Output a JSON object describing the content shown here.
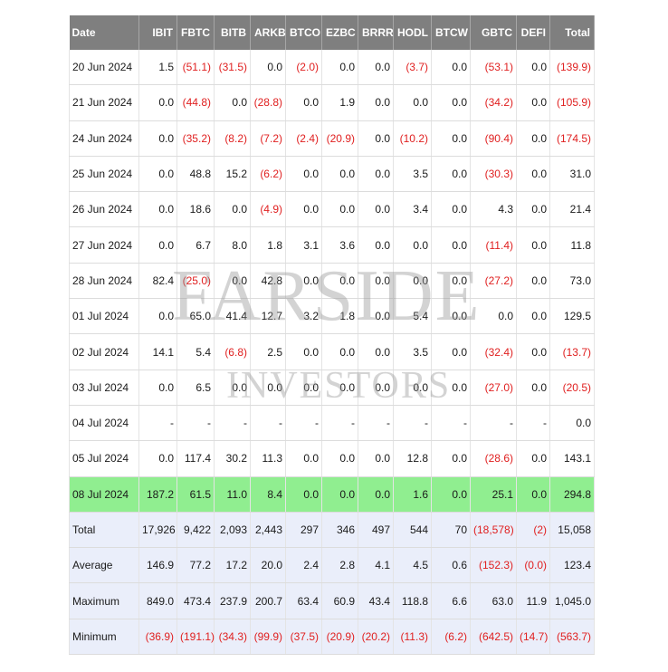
{
  "table": {
    "headers": [
      "Date",
      "IBIT",
      "FBTC",
      "BITB",
      "ARKB",
      "BTCO",
      "EZBC",
      "BRRR",
      "HODL",
      "BTCW",
      "GBTC",
      "DEFI",
      "Total"
    ],
    "rows": [
      [
        "20 Jun 2024",
        "1.5",
        "(51.1)",
        "(31.5)",
        "0.0",
        "(2.0)",
        "0.0",
        "0.0",
        "(3.7)",
        "0.0",
        "(53.1)",
        "0.0",
        "(139.9)"
      ],
      [
        "21 Jun 2024",
        "0.0",
        "(44.8)",
        "0.0",
        "(28.8)",
        "0.0",
        "1.9",
        "0.0",
        "0.0",
        "0.0",
        "(34.2)",
        "0.0",
        "(105.9)"
      ],
      [
        "24 Jun 2024",
        "0.0",
        "(35.2)",
        "(8.2)",
        "(7.2)",
        "(2.4)",
        "(20.9)",
        "0.0",
        "(10.2)",
        "0.0",
        "(90.4)",
        "0.0",
        "(174.5)"
      ],
      [
        "25 Jun 2024",
        "0.0",
        "48.8",
        "15.2",
        "(6.2)",
        "0.0",
        "0.0",
        "0.0",
        "3.5",
        "0.0",
        "(30.3)",
        "0.0",
        "31.0"
      ],
      [
        "26 Jun 2024",
        "0.0",
        "18.6",
        "0.0",
        "(4.9)",
        "0.0",
        "0.0",
        "0.0",
        "3.4",
        "0.0",
        "4.3",
        "0.0",
        "21.4"
      ],
      [
        "27 Jun 2024",
        "0.0",
        "6.7",
        "8.0",
        "1.8",
        "3.1",
        "3.6",
        "0.0",
        "0.0",
        "0.0",
        "(11.4)",
        "0.0",
        "11.8"
      ],
      [
        "28 Jun 2024",
        "82.4",
        "(25.0)",
        "0.0",
        "42.8",
        "0.0",
        "0.0",
        "0.0",
        "0.0",
        "0.0",
        "(27.2)",
        "0.0",
        "73.0"
      ],
      [
        "01 Jul 2024",
        "0.0",
        "65.0",
        "41.4",
        "12.7",
        "3.2",
        "1.8",
        "0.0",
        "5.4",
        "0.0",
        "0.0",
        "0.0",
        "129.5"
      ],
      [
        "02 Jul 2024",
        "14.1",
        "5.4",
        "(6.8)",
        "2.5",
        "0.0",
        "0.0",
        "0.0",
        "3.5",
        "0.0",
        "(32.4)",
        "0.0",
        "(13.7)"
      ],
      [
        "03 Jul 2024",
        "0.0",
        "6.5",
        "0.0",
        "0.0",
        "0.0",
        "0.0",
        "0.0",
        "0.0",
        "0.0",
        "(27.0)",
        "0.0",
        "(20.5)"
      ],
      [
        "04 Jul 2024",
        "-",
        "-",
        "-",
        "-",
        "-",
        "-",
        "-",
        "-",
        "-",
        "-",
        "-",
        "0.0"
      ],
      [
        "05 Jul 2024",
        "0.0",
        "117.4",
        "30.2",
        "11.3",
        "0.0",
        "0.0",
        "0.0",
        "12.8",
        "0.0",
        "(28.6)",
        "0.0",
        "143.1"
      ],
      [
        "08 Jul 2024",
        "187.2",
        "61.5",
        "11.0",
        "8.4",
        "0.0",
        "0.0",
        "0.0",
        "1.6",
        "0.0",
        "25.1",
        "0.0",
        "294.8"
      ]
    ],
    "highlight_row_index": 12,
    "summary_rows": [
      [
        "Total",
        "17,926",
        "9,422",
        "2,093",
        "2,443",
        "297",
        "346",
        "497",
        "544",
        "70",
        "(18,578)",
        "(2)",
        "15,058"
      ],
      [
        "Average",
        "146.9",
        "77.2",
        "17.2",
        "20.0",
        "2.4",
        "2.8",
        "4.1",
        "4.5",
        "0.6",
        "(152.3)",
        "(0.0)",
        "123.4"
      ],
      [
        "Maximum",
        "849.0",
        "473.4",
        "237.9",
        "200.7",
        "63.4",
        "60.9",
        "43.4",
        "118.8",
        "6.6",
        "63.0",
        "11.9",
        "1,045.0"
      ],
      [
        "Minimum",
        "(36.9)",
        "(191.1)",
        "(34.3)",
        "(99.9)",
        "(37.5)",
        "(20.9)",
        "(20.2)",
        "(11.3)",
        "(6.2)",
        "(642.5)",
        "(14.7)",
        "(563.7)"
      ]
    ]
  },
  "watermark": {
    "line1": "FARSIDE",
    "line2": "INVESTORS"
  },
  "colors": {
    "header_bg": "#7f7f7f",
    "header_text": "#ffffff",
    "negative": "#e02020",
    "highlight_row": "#90ee90",
    "summary_bg": "#eaeefa"
  }
}
